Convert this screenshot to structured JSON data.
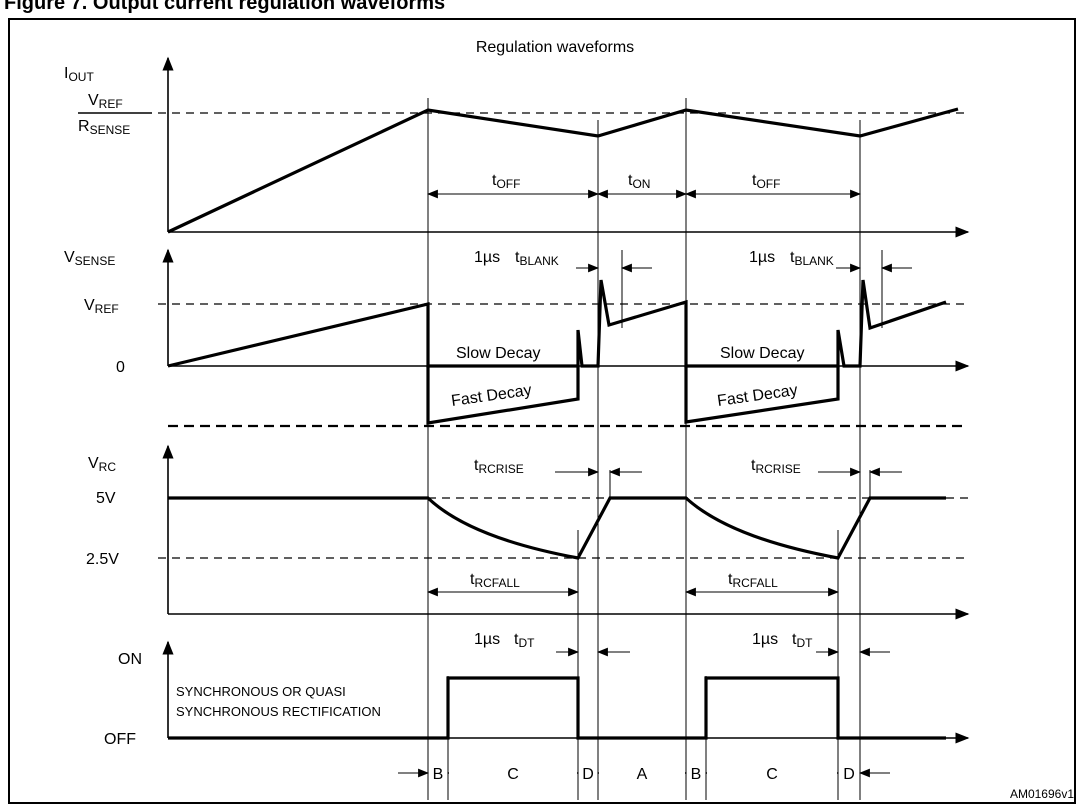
{
  "figure_heading": "Figure 7. Output current regulation waveforms",
  "title": "Regulation waveforms",
  "figure_id": "AM01696v1",
  "axes": {
    "iout": {
      "label_main": "I",
      "label_sub": "OUT",
      "ref_num_main": "V",
      "ref_num_sub": "REF",
      "ref_den_main": "R",
      "ref_den_sub": "SENSE"
    },
    "vsense": {
      "label_main": "V",
      "label_sub": "SENSE",
      "vref_main": "V",
      "vref_sub": "REF",
      "zero": "0"
    },
    "vrc": {
      "label_main": "V",
      "label_sub": "RC",
      "high": "5V",
      "low": "2.5V"
    },
    "out": {
      "on": "ON",
      "off": "OFF"
    }
  },
  "annotations": {
    "t": "t",
    "off": "OFF",
    "on": "ON",
    "one_us": "1µs",
    "blank": "BLANK",
    "rcrise": "RCRISE",
    "rcfall": "RCFALL",
    "dt": "DT",
    "slow_decay": "Slow Decay",
    "fast_decay": "Fast Decay",
    "sync_line1": "SYNCHRONOUS OR QUASI",
    "sync_line2": "SYNCHRONOUS RECTIFICATION"
  },
  "phases": [
    "B",
    "C",
    "D",
    "A",
    "B",
    "C",
    "D"
  ],
  "colors": {
    "line": "#000000",
    "background": "#ffffff"
  }
}
